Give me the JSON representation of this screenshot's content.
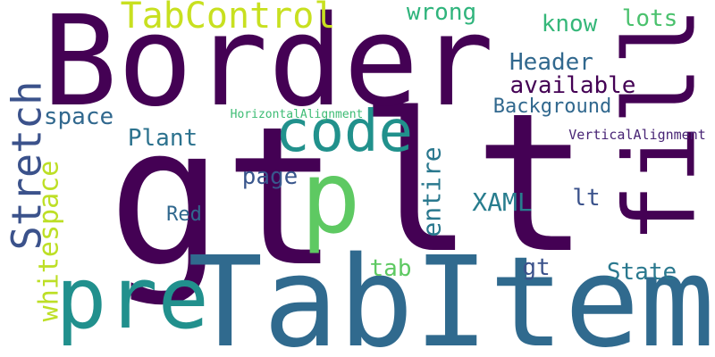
{
  "words": [
    {
      "text": "gt",
      "color": "#440154",
      "rotated": false
    },
    {
      "text": "lt",
      "color": "#440154",
      "rotated": false
    },
    {
      "text": "Border",
      "color": "#440154",
      "rotated": false
    },
    {
      "text": "TabItem",
      "color": "#306a8e",
      "rotated": false
    },
    {
      "text": "pre",
      "color": "#21908d",
      "rotated": false
    },
    {
      "text": "p",
      "color": "#5ec962",
      "rotated": false
    },
    {
      "text": "fill",
      "color": "#440154",
      "rotated": true
    },
    {
      "text": "code",
      "color": "#21918c",
      "rotated": false
    },
    {
      "text": "TabControl",
      "color": "#c8e020",
      "rotated": false
    },
    {
      "text": "Stretch",
      "color": "#3b528b",
      "rotated": true
    },
    {
      "text": "whitespace",
      "color": "#bddf26",
      "rotated": true
    },
    {
      "text": "wrong",
      "color": "#2fb47c",
      "rotated": false
    },
    {
      "text": "know",
      "color": "#35b779",
      "rotated": false
    },
    {
      "text": "lots",
      "color": "#4ac16d",
      "rotated": false
    },
    {
      "text": "Header",
      "color": "#31688e",
      "rotated": false
    },
    {
      "text": "available",
      "color": "#440154",
      "rotated": false
    },
    {
      "text": "space",
      "color": "#31688e",
      "rotated": false
    },
    {
      "text": "Background",
      "color": "#31688e",
      "rotated": false
    },
    {
      "text": "HorizontalAlignment",
      "color": "#3dbc74",
      "rotated": false
    },
    {
      "text": "VerticalAlignment",
      "color": "#482475",
      "rotated": false
    },
    {
      "text": "Plant",
      "color": "#2c728e",
      "rotated": false
    },
    {
      "text": "page",
      "color": "#39568c",
      "rotated": false
    },
    {
      "text": "entire",
      "color": "#2a788e",
      "rotated": true
    },
    {
      "text": "XAML",
      "color": "#287d8e",
      "rotated": false
    },
    {
      "text": "lt",
      "color": "#3b528b",
      "rotated": false
    },
    {
      "text": "Red",
      "color": "#31688e",
      "rotated": false
    },
    {
      "text": "tab",
      "color": "#5ec962",
      "rotated": false
    },
    {
      "text": "gt",
      "color": "#3b528b",
      "rotated": false
    },
    {
      "text": "State",
      "color": "#2a788e",
      "rotated": false
    }
  ]
}
